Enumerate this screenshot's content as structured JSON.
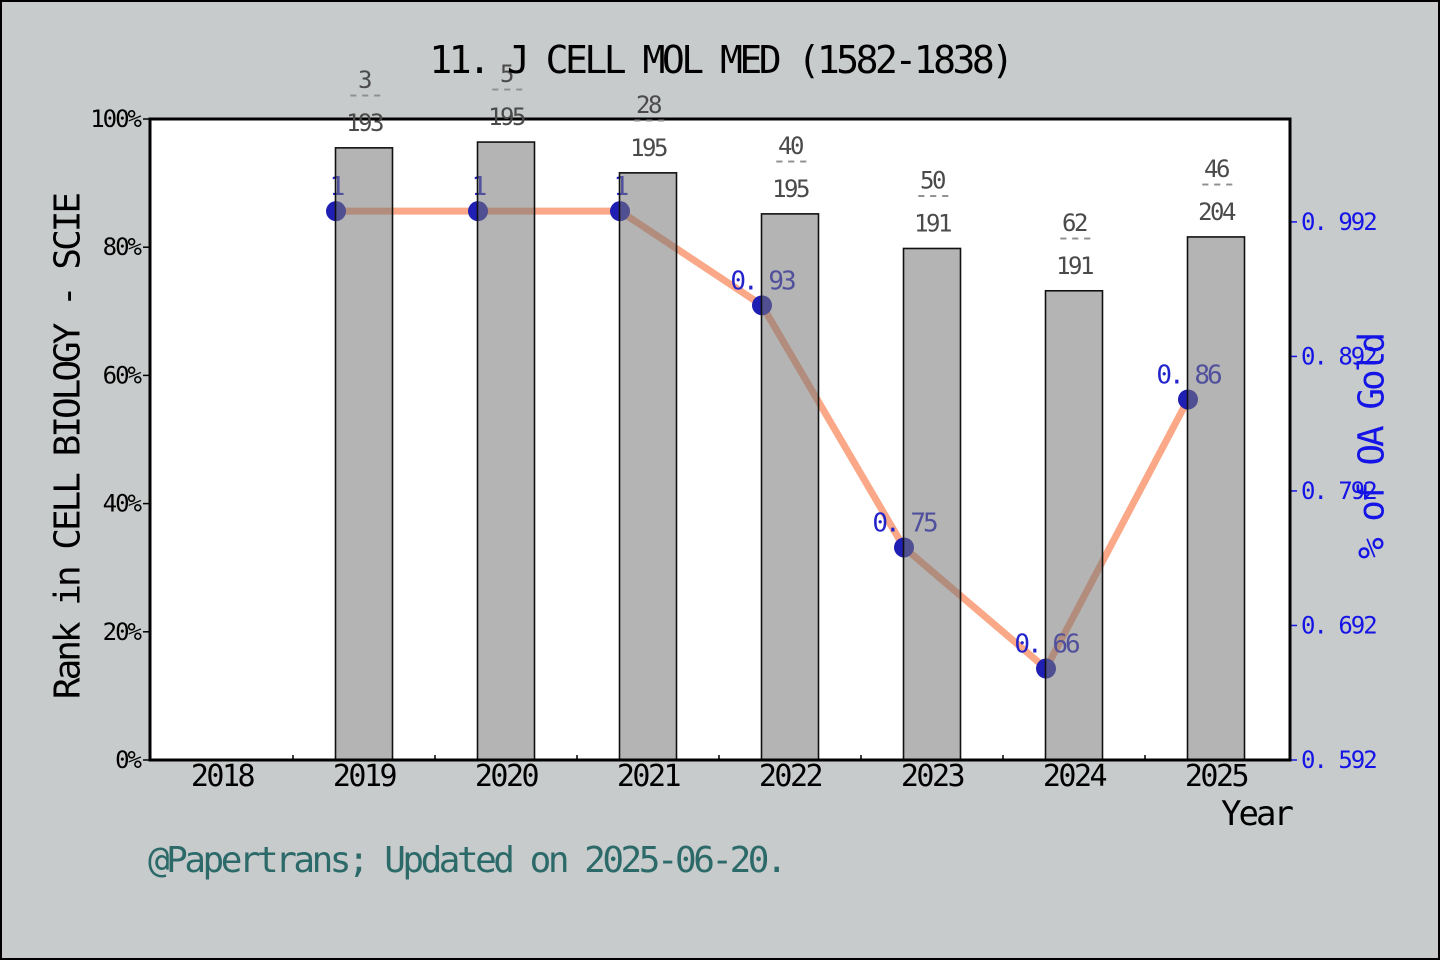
{
  "title": "11. J CELL MOL MED (1582-1838)",
  "footer": "@Papertrans; Updated on 2025-06-20.",
  "colors": {
    "background": "#c8cbcb",
    "plot_background": "#ffffff",
    "spine": "#000000",
    "bar_fill": "rgba(118,118,118,0.55)",
    "bar_edge": "#111111",
    "line": "#faa887",
    "point": "#1f1fb4",
    "point_label": "#2323cc",
    "right_axis": "#1414e6",
    "fraction_number": "#4a4a4a",
    "fraction_dash": "#8f8f8f",
    "footer_text": "#2c6a6a"
  },
  "chart_data": {
    "type": "bar",
    "title": "11. J CELL MOL MED (1582-1838)",
    "xlabel": "Year",
    "x_ticks": [
      2018,
      2019,
      2020,
      2021,
      2022,
      2023,
      2024,
      2025
    ],
    "grid": false,
    "left_axis": {
      "label": "Rank in CELL BIOLOGY - SCIE",
      "tick_labels": [
        "0%",
        "20%",
        "40%",
        "60%",
        "80%",
        "100%"
      ],
      "tick_values": [
        0,
        20,
        40,
        60,
        80,
        100
      ],
      "range": [
        0,
        100
      ]
    },
    "right_axis": {
      "label": "% of OA Gold",
      "tick_labels": [
        "0. 592",
        "0. 692",
        "0. 792",
        "0. 892",
        "0. 992"
      ],
      "tick_values": [
        0.592,
        0.692,
        0.792,
        0.892,
        0.992
      ],
      "range": [
        0.592,
        1.0685
      ]
    },
    "categories": [
      2019,
      2020,
      2021,
      2022,
      2023,
      2024,
      2025
    ],
    "bars": {
      "name": "Rank percentile in CELL BIOLOGY - SCIE",
      "values_pct": [
        95.5,
        96.4,
        91.6,
        85.2,
        79.8,
        73.2,
        81.6
      ],
      "rank_labels": [
        {
          "rank": "3",
          "total": "193"
        },
        {
          "rank": "5",
          "total": "195"
        },
        {
          "rank": "28",
          "total": "195"
        },
        {
          "rank": "40",
          "total": "195"
        },
        {
          "rank": "50",
          "total": "191"
        },
        {
          "rank": "62",
          "total": "191"
        },
        {
          "rank": "46",
          "total": "204"
        }
      ]
    },
    "line": {
      "name": "% of OA Gold",
      "values": [
        1.0,
        1.0,
        1.0,
        0.93,
        0.75,
        0.66,
        0.86
      ],
      "point_labels": [
        "1",
        "1",
        "1",
        "0. 93",
        "0. 75",
        "0. 66",
        "0. 86"
      ]
    }
  }
}
